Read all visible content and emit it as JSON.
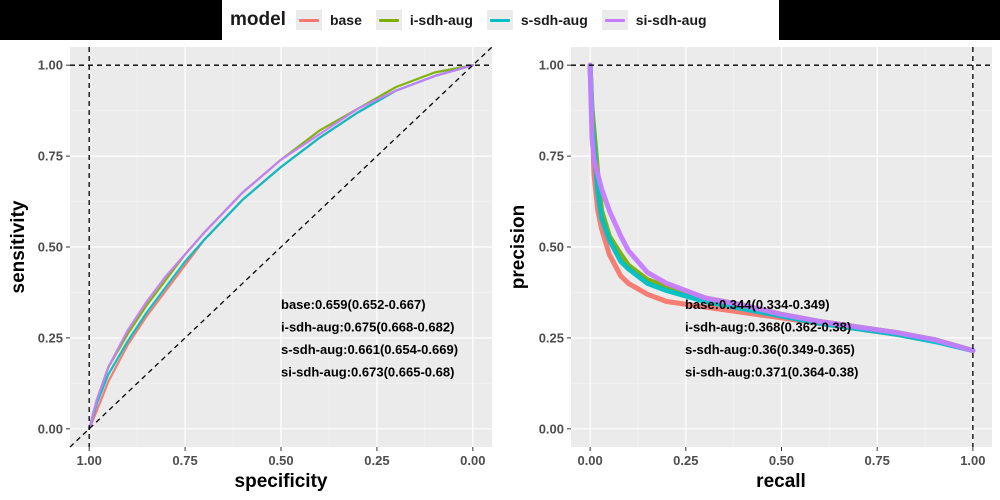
{
  "legend": {
    "title": "model",
    "entries": [
      {
        "label": "base",
        "color": "#F8766D"
      },
      {
        "label": "i-sdh-aug",
        "color": "#7CAE00"
      },
      {
        "label": "s-sdh-aug",
        "color": "#00BFC4"
      },
      {
        "label": "si-sdh-aug",
        "color": "#C77CFF"
      }
    ]
  },
  "chart_data": [
    {
      "type": "line",
      "panel": "ROC",
      "xlabel": "specificity",
      "ylabel": "sensitivity",
      "x_reversed": true,
      "xlim": [
        1.0,
        0.0
      ],
      "ylim": [
        0.0,
        1.0
      ],
      "xticks": [
        "1.00",
        "0.75",
        "0.50",
        "0.25",
        "0.00"
      ],
      "yticks": [
        "0.00",
        "0.25",
        "0.50",
        "0.75",
        "1.00"
      ],
      "grid": true,
      "reference_lines": [
        "x = 1.00 (dashed)",
        "y = 1.00 (dashed)",
        "diagonal (dashed)"
      ],
      "series": [
        {
          "name": "base",
          "x": [
            1.0,
            0.98,
            0.95,
            0.9,
            0.85,
            0.8,
            0.75,
            0.7,
            0.6,
            0.5,
            0.4,
            0.3,
            0.2,
            0.1,
            0.0
          ],
          "y": [
            0.0,
            0.05,
            0.13,
            0.23,
            0.31,
            0.38,
            0.45,
            0.52,
            0.63,
            0.72,
            0.8,
            0.87,
            0.93,
            0.97,
            1.0
          ]
        },
        {
          "name": "i-sdh-aug",
          "x": [
            1.0,
            0.98,
            0.95,
            0.9,
            0.85,
            0.8,
            0.75,
            0.7,
            0.6,
            0.5,
            0.4,
            0.3,
            0.2,
            0.1,
            0.0
          ],
          "y": [
            0.0,
            0.08,
            0.17,
            0.26,
            0.34,
            0.41,
            0.48,
            0.54,
            0.65,
            0.74,
            0.82,
            0.88,
            0.94,
            0.98,
            1.0
          ]
        },
        {
          "name": "s-sdh-aug",
          "x": [
            1.0,
            0.98,
            0.95,
            0.9,
            0.85,
            0.8,
            0.75,
            0.7,
            0.6,
            0.5,
            0.4,
            0.3,
            0.2,
            0.1,
            0.0
          ],
          "y": [
            0.0,
            0.07,
            0.15,
            0.24,
            0.32,
            0.39,
            0.46,
            0.52,
            0.63,
            0.72,
            0.8,
            0.87,
            0.93,
            0.97,
            1.0
          ]
        },
        {
          "name": "si-sdh-aug",
          "x": [
            1.0,
            0.98,
            0.95,
            0.9,
            0.85,
            0.8,
            0.75,
            0.7,
            0.6,
            0.5,
            0.4,
            0.3,
            0.2,
            0.1,
            0.0
          ],
          "y": [
            0.0,
            0.08,
            0.17,
            0.27,
            0.35,
            0.42,
            0.48,
            0.54,
            0.65,
            0.74,
            0.81,
            0.88,
            0.93,
            0.97,
            1.0
          ]
        }
      ],
      "annotations": [
        "base:0.659(0.652-0.667)",
        "i-sdh-aug:0.675(0.668-0.682)",
        "s-sdh-aug:0.661(0.654-0.669)",
        "si-sdh-aug:0.673(0.665-0.68)"
      ]
    },
    {
      "type": "line",
      "panel": "PR",
      "xlabel": "recall",
      "ylabel": "precision",
      "xlim": [
        0.0,
        1.0
      ],
      "ylim": [
        0.0,
        1.0
      ],
      "xticks": [
        "0.00",
        "0.25",
        "0.50",
        "0.75",
        "1.00"
      ],
      "yticks": [
        "0.00",
        "0.25",
        "0.50",
        "0.75",
        "1.00"
      ],
      "grid": true,
      "reference_lines": [
        "x = 1.00 (dashed)",
        "y = 1.00 (dashed)"
      ],
      "series": [
        {
          "name": "base",
          "x": [
            0.0,
            0.005,
            0.01,
            0.02,
            0.03,
            0.05,
            0.08,
            0.1,
            0.15,
            0.2,
            0.3,
            0.4,
            0.5,
            0.6,
            0.7,
            0.8,
            0.9,
            1.0
          ],
          "y": [
            1.0,
            0.85,
            0.7,
            0.6,
            0.55,
            0.48,
            0.42,
            0.4,
            0.37,
            0.35,
            0.335,
            0.32,
            0.305,
            0.29,
            0.275,
            0.26,
            0.245,
            0.215
          ]
        },
        {
          "name": "i-sdh-aug",
          "x": [
            0.0,
            0.005,
            0.01,
            0.02,
            0.03,
            0.05,
            0.08,
            0.1,
            0.15,
            0.2,
            0.3,
            0.4,
            0.5,
            0.6,
            0.7,
            0.8,
            0.9,
            1.0
          ],
          "y": [
            1.0,
            0.88,
            0.82,
            0.7,
            0.6,
            0.53,
            0.48,
            0.45,
            0.41,
            0.39,
            0.36,
            0.34,
            0.315,
            0.295,
            0.28,
            0.265,
            0.245,
            0.215
          ]
        },
        {
          "name": "s-sdh-aug",
          "x": [
            0.0,
            0.005,
            0.01,
            0.02,
            0.03,
            0.05,
            0.08,
            0.1,
            0.15,
            0.2,
            0.3,
            0.4,
            0.5,
            0.6,
            0.7,
            0.8,
            0.9,
            1.0
          ],
          "y": [
            1.0,
            0.85,
            0.78,
            0.65,
            0.58,
            0.52,
            0.46,
            0.44,
            0.4,
            0.38,
            0.35,
            0.33,
            0.31,
            0.29,
            0.275,
            0.26,
            0.24,
            0.215
          ]
        },
        {
          "name": "si-sdh-aug",
          "x": [
            0.0,
            0.005,
            0.01,
            0.02,
            0.03,
            0.05,
            0.08,
            0.1,
            0.15,
            0.2,
            0.3,
            0.4,
            0.5,
            0.6,
            0.7,
            0.8,
            0.9,
            1.0
          ],
          "y": [
            1.0,
            0.8,
            0.74,
            0.7,
            0.66,
            0.6,
            0.53,
            0.49,
            0.43,
            0.4,
            0.36,
            0.34,
            0.315,
            0.295,
            0.28,
            0.265,
            0.245,
            0.215
          ]
        }
      ],
      "annotations": [
        "base:0.344(0.334-0.349)",
        "i-sdh-aug:0.368(0.362-0.38)",
        "s-sdh-aug:0.36(0.349-0.365)",
        "si-sdh-aug:0.371(0.364-0.38)"
      ]
    }
  ]
}
